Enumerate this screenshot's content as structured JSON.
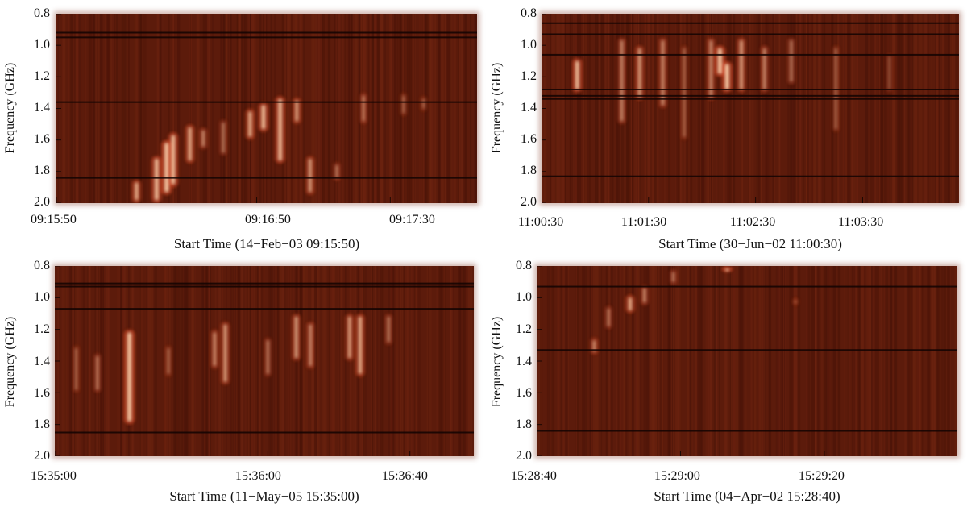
{
  "chart_data": [
    {
      "type": "heatmap",
      "ylabel": "Frequency (GHz)",
      "xlabel": "Start Time (14−Feb−03  09:15:50)",
      "yticks": [
        "0.8",
        "1.0",
        "1.2",
        "1.4",
        "1.6",
        "1.8",
        "2.0"
      ],
      "ylim": [
        0.8,
        2.0
      ],
      "xticks": [
        {
          "label": "09:15:50",
          "t": 0
        },
        {
          "label": "09:16:50",
          "t": 60
        },
        {
          "label": "09:17:30",
          "t": 100
        }
      ],
      "xlim": [
        0,
        126
      ],
      "bands": [
        0.92,
        0.95,
        1.36,
        1.84
      ],
      "bursts": [
        {
          "t": 24,
          "f0": 1.85,
          "f1": 2.0,
          "i": 0.8
        },
        {
          "t": 30,
          "f0": 1.7,
          "f1": 2.0,
          "i": 0.9
        },
        {
          "t": 33,
          "f0": 1.6,
          "f1": 1.95,
          "i": 1.0
        },
        {
          "t": 35,
          "f0": 1.55,
          "f1": 1.9,
          "i": 0.9
        },
        {
          "t": 40,
          "f0": 1.5,
          "f1": 1.75,
          "i": 0.8
        },
        {
          "t": 44,
          "f0": 1.52,
          "f1": 1.66,
          "i": 0.6
        },
        {
          "t": 50,
          "f0": 1.47,
          "f1": 1.7,
          "i": 0.5
        },
        {
          "t": 58,
          "f0": 1.4,
          "f1": 1.6,
          "i": 0.8
        },
        {
          "t": 62,
          "f0": 1.36,
          "f1": 1.55,
          "i": 0.9
        },
        {
          "t": 67,
          "f0": 1.32,
          "f1": 1.75,
          "i": 0.9
        },
        {
          "t": 72,
          "f0": 1.33,
          "f1": 1.5,
          "i": 0.7
        },
        {
          "t": 76,
          "f0": 1.7,
          "f1": 1.95,
          "i": 0.7
        },
        {
          "t": 84,
          "f0": 1.74,
          "f1": 1.86,
          "i": 0.5
        },
        {
          "t": 92,
          "f0": 1.3,
          "f1": 1.5,
          "i": 0.5
        },
        {
          "t": 104,
          "f0": 1.3,
          "f1": 1.45,
          "i": 0.4
        },
        {
          "t": 110,
          "f0": 1.32,
          "f1": 1.42,
          "i": 0.4
        }
      ]
    },
    {
      "type": "heatmap",
      "ylabel": "Frequency (GHz)",
      "xlabel": "Start Time (30−Jun−02  11:00:30)",
      "yticks": [
        "0.8",
        "1.0",
        "1.2",
        "1.4",
        "1.6",
        "1.8",
        "2.0"
      ],
      "ylim": [
        0.8,
        2.0
      ],
      "xticks": [
        {
          "label": "11:00:30",
          "t": 0
        },
        {
          "label": "11:01:30",
          "t": 60
        },
        {
          "label": "11:02:30",
          "t": 120
        },
        {
          "label": "11:03:30",
          "t": 180
        }
      ],
      "xlim": [
        0,
        234
      ],
      "bands": [
        0.86,
        0.93,
        1.06,
        1.28,
        1.32,
        1.34,
        1.83
      ],
      "bursts": [
        {
          "t": 20,
          "f0": 1.08,
          "f1": 1.3,
          "i": 0.9
        },
        {
          "t": 45,
          "f0": 0.95,
          "f1": 1.5,
          "i": 0.6
        },
        {
          "t": 55,
          "f0": 1.0,
          "f1": 1.35,
          "i": 0.7
        },
        {
          "t": 68,
          "f0": 0.95,
          "f1": 1.4,
          "i": 0.6
        },
        {
          "t": 80,
          "f0": 1.0,
          "f1": 1.6,
          "i": 0.4
        },
        {
          "t": 95,
          "f0": 0.95,
          "f1": 1.35,
          "i": 0.6
        },
        {
          "t": 100,
          "f0": 1.0,
          "f1": 1.2,
          "i": 1.0
        },
        {
          "t": 104,
          "f0": 1.1,
          "f1": 1.3,
          "i": 1.0
        },
        {
          "t": 112,
          "f0": 0.95,
          "f1": 1.3,
          "i": 0.7
        },
        {
          "t": 125,
          "f0": 1.0,
          "f1": 1.3,
          "i": 0.6
        },
        {
          "t": 140,
          "f0": 0.95,
          "f1": 1.25,
          "i": 0.5
        },
        {
          "t": 165,
          "f0": 1.0,
          "f1": 1.55,
          "i": 0.4
        },
        {
          "t": 195,
          "f0": 1.05,
          "f1": 1.3,
          "i": 0.3
        }
      ]
    },
    {
      "type": "heatmap",
      "ylabel": "Frequency (GHz)",
      "xlabel": "Start Time (11−May−05 15:35:00)",
      "yticks": [
        "0.8",
        "1.0",
        "1.2",
        "1.4",
        "1.6",
        "1.8",
        "2.0"
      ],
      "ylim": [
        0.8,
        2.0
      ],
      "xticks": [
        {
          "label": "15:35:00",
          "t": 0
        },
        {
          "label": "15:36:00",
          "t": 60
        },
        {
          "label": "15:36:40",
          "t": 100
        }
      ],
      "xlim": [
        0,
        118
      ],
      "bands": [
        0.91,
        0.93,
        1.07,
        1.85
      ],
      "bursts": [
        {
          "t": 6,
          "f0": 1.3,
          "f1": 1.6,
          "i": 0.4
        },
        {
          "t": 12,
          "f0": 1.35,
          "f1": 1.6,
          "i": 0.5
        },
        {
          "t": 21,
          "f0": 1.2,
          "f1": 1.8,
          "i": 1.0
        },
        {
          "t": 32,
          "f0": 1.3,
          "f1": 1.5,
          "i": 0.4
        },
        {
          "t": 45,
          "f0": 1.2,
          "f1": 1.45,
          "i": 0.6
        },
        {
          "t": 48,
          "f0": 1.15,
          "f1": 1.55,
          "i": 0.7
        },
        {
          "t": 60,
          "f0": 1.25,
          "f1": 1.5,
          "i": 0.5
        },
        {
          "t": 68,
          "f0": 1.1,
          "f1": 1.4,
          "i": 0.7
        },
        {
          "t": 72,
          "f0": 1.15,
          "f1": 1.45,
          "i": 0.6
        },
        {
          "t": 83,
          "f0": 1.1,
          "f1": 1.4,
          "i": 0.7
        },
        {
          "t": 86,
          "f0": 1.1,
          "f1": 1.5,
          "i": 0.8
        },
        {
          "t": 94,
          "f0": 1.1,
          "f1": 1.3,
          "i": 0.5
        }
      ]
    },
    {
      "type": "heatmap",
      "ylabel": "Frequency (GHz)",
      "xlabel": "Start Time (04−Apr−02  15:28:40)",
      "yticks": [
        "0.8",
        "1.0",
        "1.2",
        "1.4",
        "1.6",
        "1.8",
        "2.0"
      ],
      "ylim": [
        0.8,
        2.0
      ],
      "xticks": [
        {
          "label": "15:28:40",
          "t": 0
        },
        {
          "label": "15:29:00",
          "t": 20
        },
        {
          "label": "15:29:20",
          "t": 40
        }
      ],
      "xlim": [
        0,
        58.5
      ],
      "bands": [
        0.93,
        1.33,
        1.84
      ],
      "bursts": [
        {
          "t": 8,
          "f0": 1.25,
          "f1": 1.36,
          "i": 0.6
        },
        {
          "t": 10,
          "f0": 1.05,
          "f1": 1.2,
          "i": 0.5
        },
        {
          "t": 13,
          "f0": 0.98,
          "f1": 1.1,
          "i": 0.8
        },
        {
          "t": 15,
          "f0": 0.92,
          "f1": 1.05,
          "i": 0.6
        },
        {
          "t": 19,
          "f0": 0.82,
          "f1": 0.92,
          "i": 0.5
        },
        {
          "t": 26.5,
          "f0": 0.8,
          "f1": 0.84,
          "i": 1.0
        },
        {
          "t": 36,
          "f0": 1.0,
          "f1": 1.05,
          "i": 0.4
        }
      ]
    }
  ]
}
